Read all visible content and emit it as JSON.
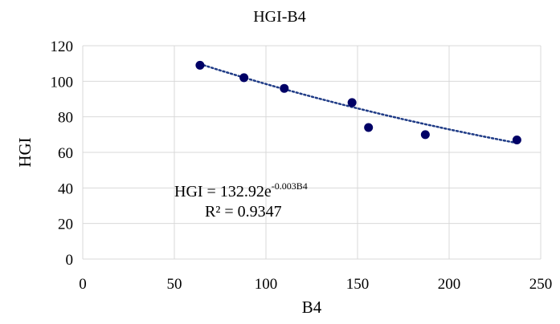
{
  "chart_data": {
    "type": "scatter",
    "title": "HGI-B4",
    "xlabel": "B4",
    "ylabel": "HGI",
    "xlim": [
      0,
      250
    ],
    "ylim": [
      0,
      120
    ],
    "x_ticks": [
      0,
      50,
      100,
      150,
      200,
      250
    ],
    "y_ticks": [
      0,
      20,
      40,
      60,
      80,
      100,
      120
    ],
    "grid": true,
    "points": [
      {
        "x": 64,
        "y": 109
      },
      {
        "x": 88,
        "y": 102
      },
      {
        "x": 110,
        "y": 96
      },
      {
        "x": 147,
        "y": 88
      },
      {
        "x": 156,
        "y": 74
      },
      {
        "x": 187,
        "y": 70
      },
      {
        "x": 237,
        "y": 67
      }
    ],
    "trendline": {
      "type": "exponential",
      "a": 132.92,
      "b": -0.003,
      "x_range": [
        64,
        237
      ],
      "equation_main": "HGI = 132.92e",
      "equation_exponent": "-0.003B4",
      "r_squared_label": "R² = 0.9347"
    },
    "colors": {
      "points": "#000066",
      "trendline": "#1f3b86",
      "grid": "#d9d9d9"
    }
  }
}
